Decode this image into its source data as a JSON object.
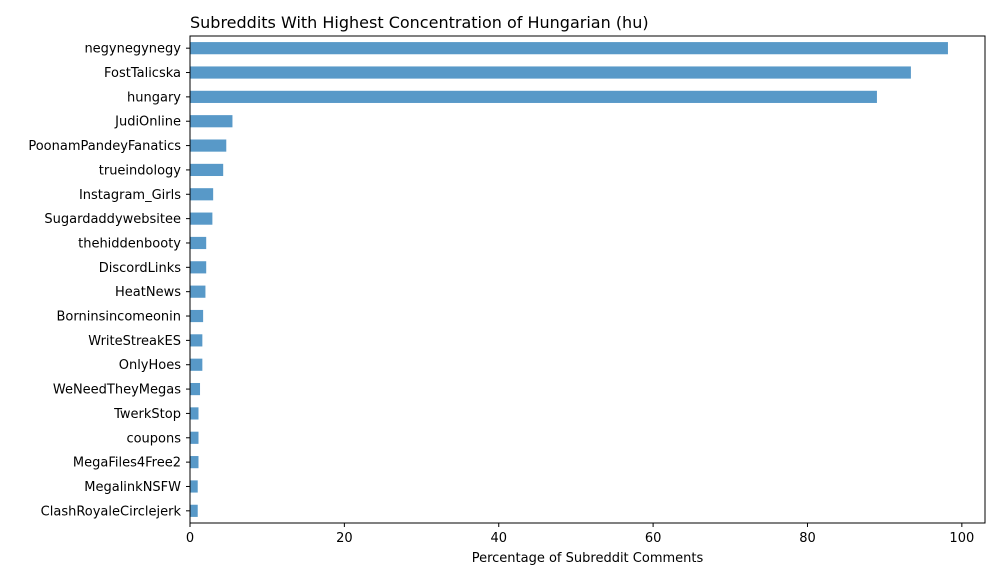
{
  "chart_data": {
    "type": "bar",
    "orientation": "horizontal",
    "title": "Subreddits With Highest Concentration of Hungarian (hu)",
    "xlabel": "Percentage of Subreddit Comments",
    "ylabel": "",
    "xlim": [
      0,
      103
    ],
    "xticks": [
      0,
      20,
      40,
      60,
      80,
      100
    ],
    "grid": false,
    "bar_color": "#5899c8",
    "categories": [
      "negynegynegy",
      "FostTalicska",
      "hungary",
      "JudiOnline",
      "PoonamPandeyFanatics",
      "trueindology",
      "Instagram_Girls",
      "Sugardaddywebsitee",
      "thehiddenbooty",
      "DiscordLinks",
      "HeatNews",
      "Borninsincomeonin",
      "WriteStreakES",
      "OnlyHoes",
      "WeNeedTheyMegas",
      "TwerkStop",
      "coupons",
      "MegaFiles4Free2",
      "MegalinkNSFW",
      "ClashRoyaleCirclejerk"
    ],
    "values": [
      98.2,
      93.4,
      89.0,
      5.5,
      4.7,
      4.3,
      3.0,
      2.9,
      2.1,
      2.1,
      2.0,
      1.7,
      1.6,
      1.6,
      1.3,
      1.1,
      1.1,
      1.1,
      1.0,
      1.0
    ]
  }
}
